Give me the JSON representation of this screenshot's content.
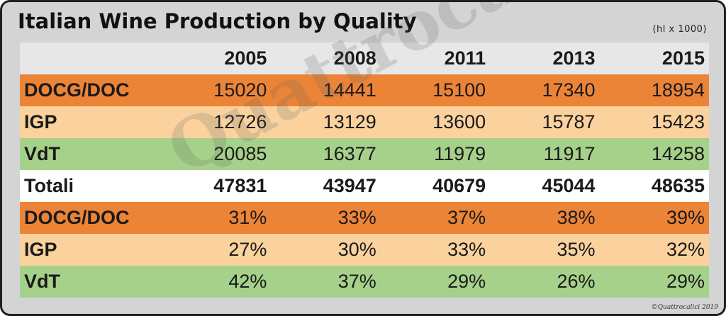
{
  "title": "Italian Wine Production by Quality",
  "unit": "(hl x 1000)",
  "watermark": "Quattrocalici",
  "copyright": "©Quattrocalici 2019",
  "chart_data": {
    "type": "table",
    "title": "Italian Wine Production by Quality",
    "unit": "(hl x 1000)",
    "columns": [
      "2005",
      "2008",
      "2011",
      "2013",
      "2015"
    ],
    "rows": [
      {
        "label": "DOCG/DOC",
        "values": [
          "15020",
          "14441",
          "15100",
          "17340",
          "18954"
        ],
        "style": "docg"
      },
      {
        "label": "IGP",
        "values": [
          "12726",
          "13129",
          "13600",
          "15787",
          "15423"
        ],
        "style": "igp"
      },
      {
        "label": "VdT",
        "values": [
          "20085",
          "16377",
          "11979",
          "11917",
          "14258"
        ],
        "style": "vdt"
      },
      {
        "label": "Totali",
        "values": [
          "47831",
          "43947",
          "40679",
          "45044",
          "48635"
        ],
        "style": "tot"
      },
      {
        "label": "DOCG/DOC",
        "values": [
          "31%",
          "33%",
          "37%",
          "38%",
          "39%"
        ],
        "style": "docg"
      },
      {
        "label": "IGP",
        "values": [
          "27%",
          "30%",
          "33%",
          "35%",
          "32%"
        ],
        "style": "igp"
      },
      {
        "label": "VdT",
        "values": [
          "42%",
          "37%",
          "29%",
          "26%",
          "29%"
        ],
        "style": "vdt"
      }
    ],
    "colors": {
      "docg": "#ec8438",
      "igp": "#fbd29d",
      "vdt": "#a6d18a",
      "totali": "#ffffff",
      "header": "#e7e7e7"
    }
  }
}
